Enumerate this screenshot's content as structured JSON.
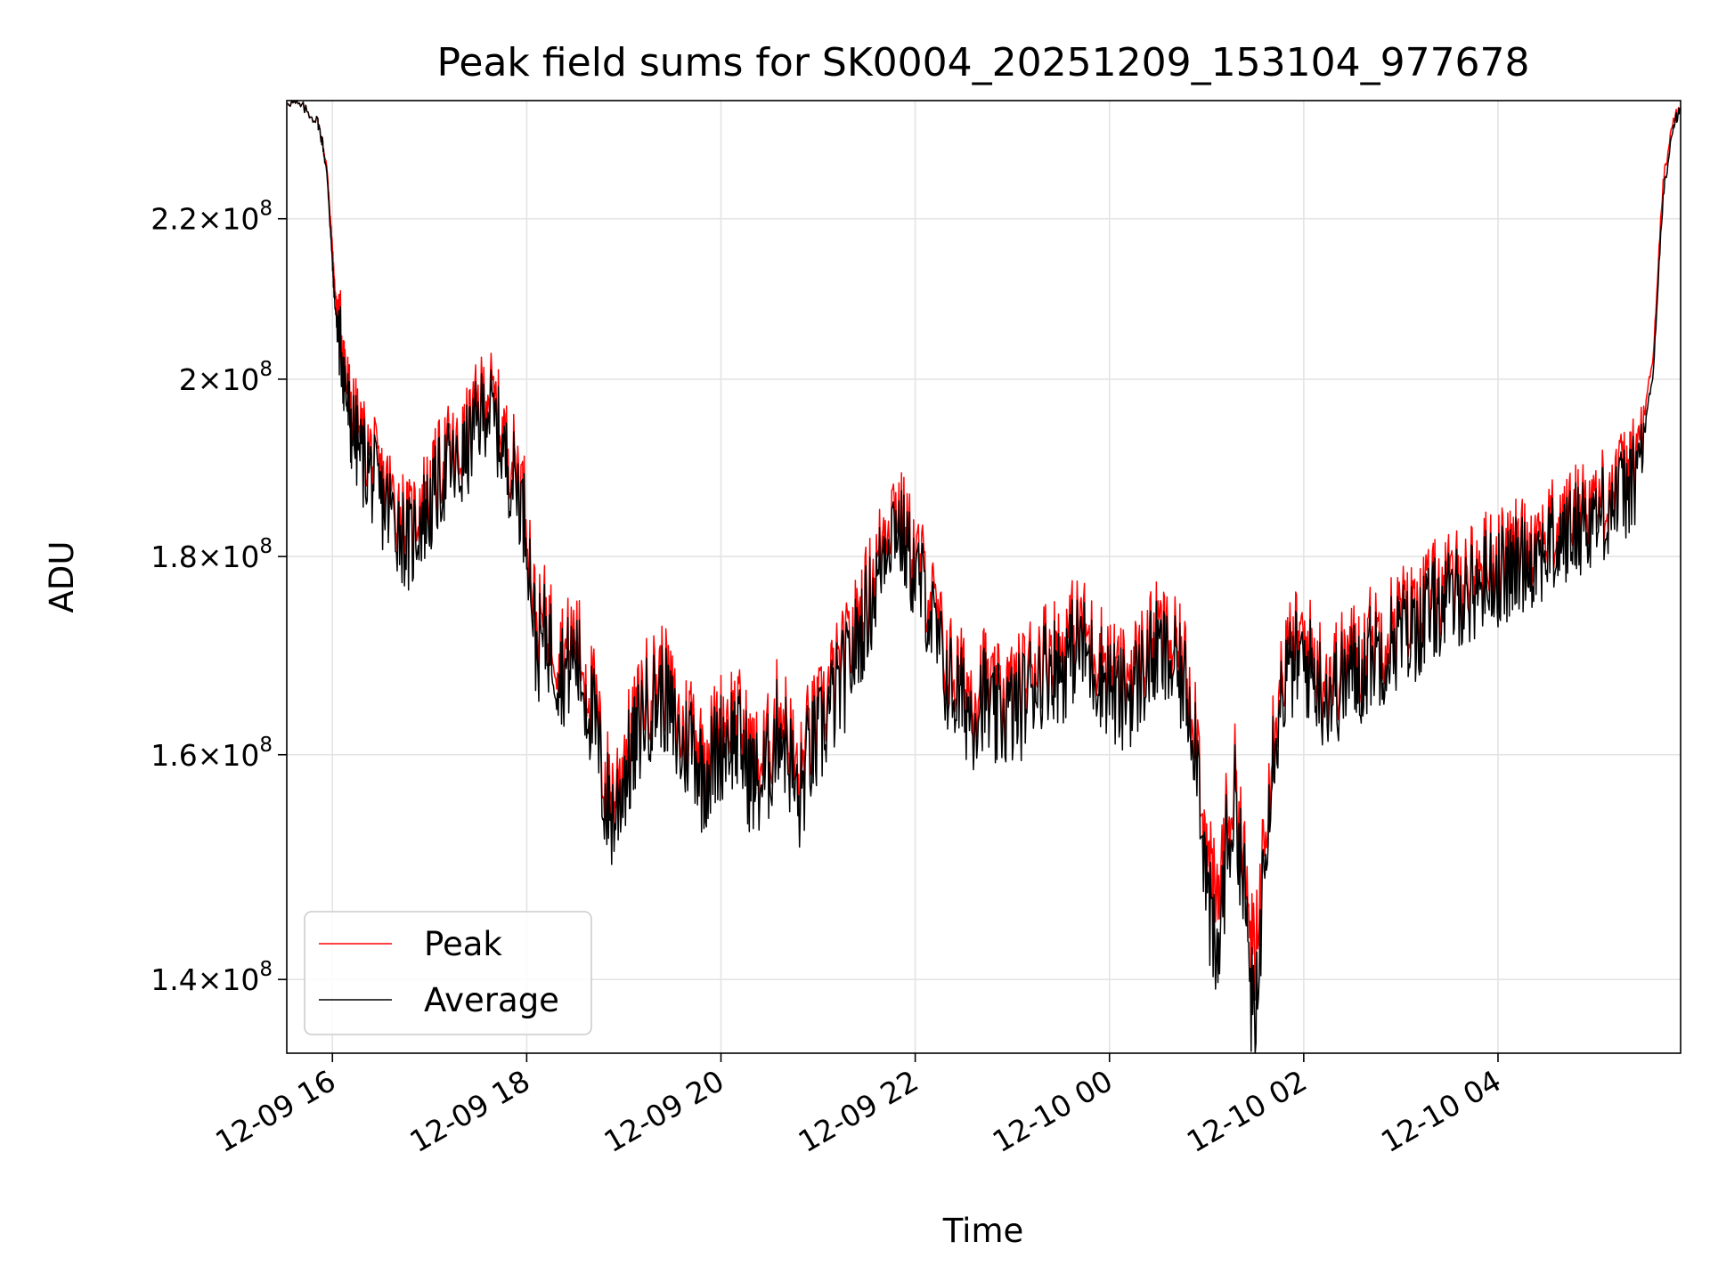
{
  "chart_data": {
    "type": "line",
    "title": "Peak field sums for SK0004_20251209_153104_977678",
    "xlabel": "Time",
    "ylabel": "ADU",
    "yscale": "log",
    "ylim": [
      134000000,
      236000000
    ],
    "xlim_hours": [
      -0.47,
      13.88
    ],
    "grid": true,
    "legend_position": "lower-left",
    "x_ticks": [
      {
        "label": "12-09 16",
        "hour": 0
      },
      {
        "label": "12-09 18",
        "hour": 2
      },
      {
        "label": "12-09 20",
        "hour": 4
      },
      {
        "label": "12-09 22",
        "hour": 6
      },
      {
        "label": "12-10 00",
        "hour": 8
      },
      {
        "label": "12-10 02",
        "hour": 10
      },
      {
        "label": "12-10 04",
        "hour": 12
      }
    ],
    "y_ticks": [
      {
        "mantissa": "1.4",
        "exp": "8",
        "value": 140000000
      },
      {
        "mantissa": "1.6",
        "exp": "8",
        "value": 160000000
      },
      {
        "mantissa": "1.8",
        "exp": "8",
        "value": 180000000
      },
      {
        "mantissa": "2",
        "exp": "8",
        "value": 200000000
      },
      {
        "mantissa": "2.2",
        "exp": "8",
        "value": 220000000
      }
    ],
    "series": [
      {
        "name": "Peak",
        "color": "#ff0000",
        "x_hours": [
          -0.46,
          -0.3,
          -0.15,
          -0.1,
          -0.05,
          0.0,
          0.02,
          0.05,
          0.1,
          0.15,
          0.2,
          0.3,
          0.4,
          0.5,
          0.6,
          0.7,
          0.8,
          0.9,
          1.0,
          1.1,
          1.2,
          1.3,
          1.4,
          1.5,
          1.6,
          1.7,
          1.8,
          1.9,
          2.0,
          2.1,
          2.2,
          2.3,
          2.4,
          2.5,
          2.6,
          2.7,
          2.8,
          2.9,
          3.0,
          3.1,
          3.2,
          3.3,
          3.4,
          3.5,
          3.6,
          3.7,
          3.8,
          3.9,
          4.0,
          4.1,
          4.2,
          4.3,
          4.4,
          4.5,
          4.6,
          4.7,
          4.8,
          4.9,
          5.0,
          5.1,
          5.2,
          5.3,
          5.4,
          5.5,
          5.6,
          5.7,
          5.8,
          5.9,
          6.0,
          6.1,
          6.2,
          6.3,
          6.4,
          6.5,
          6.6,
          6.7,
          6.8,
          6.9,
          7.0,
          7.1,
          7.2,
          7.3,
          7.4,
          7.5,
          7.6,
          7.7,
          7.8,
          7.9,
          8.0,
          8.1,
          8.2,
          8.3,
          8.4,
          8.5,
          8.6,
          8.7,
          8.8,
          8.9,
          9.0,
          9.1,
          9.2,
          9.3,
          9.4,
          9.5,
          9.6,
          9.7,
          9.8,
          9.9,
          10.0,
          10.1,
          10.2,
          10.3,
          10.4,
          10.5,
          10.6,
          10.7,
          10.8,
          10.9,
          11.0,
          11.1,
          11.2,
          11.3,
          11.4,
          11.5,
          11.6,
          11.7,
          11.8,
          11.9,
          12.0,
          12.1,
          12.2,
          12.3,
          12.4,
          12.5,
          12.6,
          12.7,
          12.8,
          12.9,
          13.0,
          13.1,
          13.2,
          13.3,
          13.4,
          13.5,
          13.6,
          13.7,
          13.8,
          13.87
        ],
        "values": [
          236,
          235,
          233,
          230,
          226,
          216,
          212,
          208,
          205,
          199,
          196,
          193,
          191,
          188,
          187,
          185,
          183,
          186,
          187,
          190,
          192,
          191,
          194,
          197,
          199,
          196,
          192,
          190,
          185,
          172,
          174,
          171,
          170,
          172,
          168,
          165,
          158,
          156,
          160,
          162,
          166,
          167,
          168,
          165,
          162,
          164,
          160,
          161,
          163,
          164,
          163,
          160,
          159,
          161,
          165,
          162,
          157,
          162,
          163,
          166,
          168,
          170,
          173,
          176,
          179,
          184,
          186,
          183,
          180,
          178,
          174,
          170,
          168,
          167,
          166,
          168,
          165,
          166,
          166,
          167,
          169,
          170,
          171,
          170,
          172,
          173,
          171,
          170,
          169,
          167,
          168,
          169,
          171,
          172,
          171,
          170,
          168,
          163,
          150,
          146,
          153,
          158,
          148,
          140,
          155,
          164,
          169,
          171,
          171,
          170,
          168,
          168,
          169,
          170,
          170,
          172,
          172,
          173,
          174,
          174,
          175,
          176,
          177,
          177,
          178,
          178,
          179,
          180,
          180,
          180,
          181,
          182,
          182,
          183,
          183,
          184,
          185,
          186,
          186,
          187,
          188,
          189,
          190,
          195,
          203,
          225,
          233,
          235
        ]
      },
      {
        "name": "Average",
        "color": "#000000",
        "x_hours": [
          -0.46,
          -0.3,
          -0.15,
          -0.1,
          -0.05,
          0.0,
          0.02,
          0.05,
          0.1,
          0.15,
          0.2,
          0.3,
          0.4,
          0.5,
          0.6,
          0.7,
          0.8,
          0.9,
          1.0,
          1.1,
          1.2,
          1.3,
          1.4,
          1.5,
          1.6,
          1.7,
          1.8,
          1.9,
          2.0,
          2.1,
          2.2,
          2.3,
          2.4,
          2.5,
          2.6,
          2.7,
          2.8,
          2.9,
          3.0,
          3.1,
          3.2,
          3.3,
          3.4,
          3.5,
          3.6,
          3.7,
          3.8,
          3.9,
          4.0,
          4.1,
          4.2,
          4.3,
          4.4,
          4.5,
          4.6,
          4.7,
          4.8,
          4.9,
          5.0,
          5.1,
          5.2,
          5.3,
          5.4,
          5.5,
          5.6,
          5.7,
          5.8,
          5.9,
          6.0,
          6.1,
          6.2,
          6.3,
          6.4,
          6.5,
          6.6,
          6.7,
          6.8,
          6.9,
          7.0,
          7.1,
          7.2,
          7.3,
          7.4,
          7.5,
          7.6,
          7.7,
          7.8,
          7.9,
          8.0,
          8.1,
          8.2,
          8.3,
          8.4,
          8.5,
          8.6,
          8.7,
          8.8,
          8.9,
          9.0,
          9.1,
          9.2,
          9.3,
          9.4,
          9.5,
          9.6,
          9.7,
          9.8,
          9.9,
          10.0,
          10.1,
          10.2,
          10.3,
          10.4,
          10.5,
          10.6,
          10.7,
          10.8,
          10.9,
          11.0,
          11.1,
          11.2,
          11.3,
          11.4,
          11.5,
          11.6,
          11.7,
          11.8,
          11.9,
          12.0,
          12.1,
          12.2,
          12.3,
          12.4,
          12.5,
          12.6,
          12.7,
          12.8,
          12.9,
          13.0,
          13.1,
          13.2,
          13.3,
          13.4,
          13.5,
          13.6,
          13.7,
          13.8,
          13.87
        ],
        "values": [
          236,
          235,
          233,
          230,
          225,
          214,
          210,
          206,
          203,
          197,
          194,
          191,
          189,
          186,
          185,
          183,
          181,
          184,
          185,
          188,
          190,
          189,
          192,
          195,
          197,
          194,
          190,
          188,
          183,
          170,
          172,
          169,
          168,
          170,
          166,
          163,
          156,
          154,
          158,
          160,
          164,
          165,
          166,
          163,
          160,
          162,
          158,
          159,
          161,
          162,
          161,
          158,
          157,
          159,
          163,
          160,
          155,
          160,
          161,
          164,
          166,
          168,
          171,
          174,
          177,
          182,
          184,
          181,
          178,
          176,
          172,
          168,
          166,
          165,
          164,
          166,
          163,
          164,
          164,
          165,
          167,
          168,
          169,
          168,
          170,
          171,
          169,
          168,
          167,
          165,
          166,
          167,
          169,
          170,
          169,
          168,
          166,
          161,
          148,
          140,
          151,
          156,
          146,
          134,
          153,
          162,
          167,
          169,
          169,
          168,
          166,
          166,
          167,
          168,
          168,
          170,
          170,
          171,
          172,
          172,
          173,
          174,
          175,
          175,
          176,
          176,
          177,
          178,
          178,
          178,
          179,
          180,
          180,
          181,
          181,
          182,
          183,
          184,
          184,
          185,
          186,
          187,
          188,
          193,
          201,
          223,
          232,
          235
        ]
      }
    ],
    "values_unit": "million ADU",
    "legend": [
      {
        "label": "Peak",
        "color": "#ff0000"
      },
      {
        "label": "Average",
        "color": "#000000"
      }
    ]
  }
}
